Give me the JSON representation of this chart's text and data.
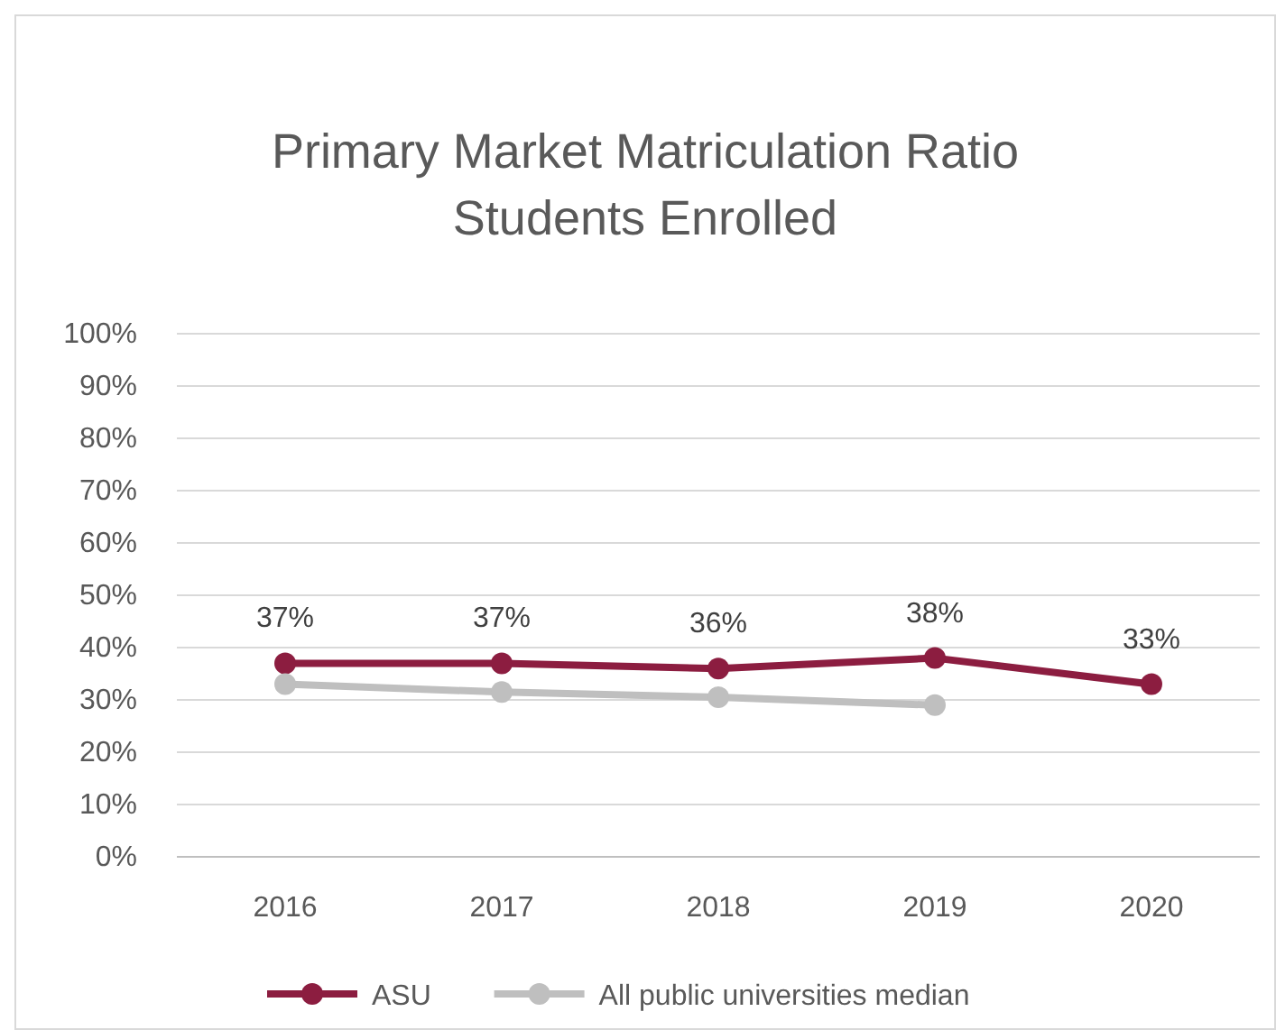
{
  "chart_data": {
    "type": "line",
    "title": "Primary Market Matriculation Ratio\nStudents Enrolled",
    "categories": [
      "2016",
      "2017",
      "2018",
      "2019",
      "2020"
    ],
    "series": [
      {
        "name": "ASU",
        "color": "#8c1d40",
        "values": [
          37,
          37,
          36,
          38,
          33
        ],
        "value_labels": [
          "37%",
          "37%",
          "36%",
          "38%",
          "33%"
        ]
      },
      {
        "name": "All public universities median",
        "color": "#bfbfbf",
        "values": [
          33,
          31.5,
          30.5,
          29,
          null
        ]
      }
    ],
    "ylim": [
      0,
      100
    ],
    "yticks": [
      {
        "value": 0,
        "label": "0%"
      },
      {
        "value": 10,
        "label": "10%"
      },
      {
        "value": 20,
        "label": "20%"
      },
      {
        "value": 30,
        "label": "30%"
      },
      {
        "value": 40,
        "label": "40%"
      },
      {
        "value": 50,
        "label": "50%"
      },
      {
        "value": 60,
        "label": "60%"
      },
      {
        "value": 70,
        "label": "70%"
      },
      {
        "value": 80,
        "label": "80%"
      },
      {
        "value": 90,
        "label": "90%"
      },
      {
        "value": 100,
        "label": "100%"
      }
    ],
    "grid": "y",
    "legend": "bottom",
    "marker": "circle",
    "line_style": "solid"
  }
}
